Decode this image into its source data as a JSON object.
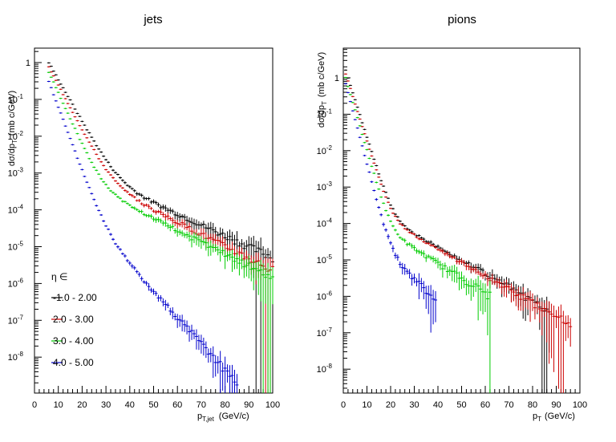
{
  "chart_data": [
    {
      "type": "scatter",
      "title": "jets",
      "xlabel": "p",
      "xlabel_sub": "T,jet",
      "xlabel_unit": "(GeV/c)",
      "ylabel": "dσ/dp (mb c/GeV)",
      "ylabel_parts": {
        "pre": "dσ/dp",
        "sub": "T",
        "post": "(mb c/GeV)"
      },
      "xlim": [
        0,
        100
      ],
      "ylim": [
        2e-09,
        2
      ],
      "log_y": true,
      "grid": false,
      "x_ticks": [
        0,
        10,
        20,
        30,
        40,
        50,
        60,
        70,
        80,
        90,
        100
      ],
      "y_ticks": [
        {
          "value": 1,
          "label": "1"
        },
        {
          "value": 0.1,
          "label": "10",
          "exp": "-1"
        },
        {
          "value": 0.01,
          "label": "10",
          "exp": "-2"
        },
        {
          "value": 0.001,
          "label": "10",
          "exp": "-3"
        },
        {
          "value": 0.0001,
          "label": "10",
          "exp": "-4"
        },
        {
          "value": 1e-05,
          "label": "10",
          "exp": "-5"
        },
        {
          "value": 1e-06,
          "label": "10",
          "exp": "-6"
        },
        {
          "value": 1e-07,
          "label": "10",
          "exp": "-7"
        },
        {
          "value": 1e-08,
          "label": "10",
          "exp": "-8"
        }
      ],
      "legend_header": "η ∈",
      "legend_position": "bottom-left",
      "series": [
        {
          "name": "-1.0 - 2.00",
          "color": "#000000",
          "model": {
            "x_start": 6,
            "x_end": 100,
            "a": 1.0,
            "b": 0.35,
            "c": 0.055,
            "d": 0.003,
            "e": 0.068
          }
        },
        {
          "name": "2.0 - 3.00",
          "color": "#cc0000",
          "model": {
            "x_start": 6,
            "x_end": 100,
            "a": 0.75,
            "b": 0.37,
            "c": 0.06,
            "d": 0.0026,
            "e": 0.0745
          }
        },
        {
          "name": "3.0 - 4.00",
          "color": "#00cc00",
          "model": {
            "x_start": 6,
            "x_end": 100,
            "a": 0.55,
            "b": 0.42,
            "c": 0.075,
            "d": 0.0016,
            "e": 0.075
          }
        },
        {
          "name": "4.0 - 5.00",
          "color": "#0000cc",
          "model": {
            "x_start": 6,
            "x_end": 85,
            "a": 0.3,
            "b": 0.48,
            "c": 0.11,
            "d": 0.0008,
            "e": 0.163
          }
        }
      ]
    },
    {
      "type": "scatter",
      "title": "pions",
      "xlabel": "p",
      "xlabel_sub": "T",
      "xlabel_unit": "(GeV/c)",
      "ylabel": "dσ/dp (mb c/GeV)",
      "ylabel_parts": {
        "pre": "dσ/dp",
        "sub": "T",
        "post": "(mb c/GeV)"
      },
      "xlim": [
        0,
        100
      ],
      "ylim": [
        2e-09,
        8
      ],
      "log_y": true,
      "grid": false,
      "x_ticks": [
        0,
        10,
        20,
        30,
        40,
        50,
        60,
        70,
        80,
        90,
        100
      ],
      "y_ticks": [
        {
          "value": 1,
          "label": "1"
        },
        {
          "value": 0.1,
          "label": "10",
          "exp": "-1"
        },
        {
          "value": 0.01,
          "label": "10",
          "exp": "-2"
        },
        {
          "value": 0.001,
          "label": "10",
          "exp": "-3"
        },
        {
          "value": 0.0001,
          "label": "10",
          "exp": "-4"
        },
        {
          "value": 1e-05,
          "label": "10",
          "exp": "-5"
        },
        {
          "value": 1e-06,
          "label": "10",
          "exp": "-6"
        },
        {
          "value": 1e-07,
          "label": "10",
          "exp": "-7"
        },
        {
          "value": 1e-08,
          "label": "10",
          "exp": "-8"
        }
      ],
      "series": [
        {
          "name": "-1.0 - 2.00",
          "color": "#000000",
          "model": {
            "x_start": 1,
            "x_end": 87,
            "a": 1.6,
            "b": 0.55,
            "c": 0.14,
            "d": 0.0006,
            "e": 0.084
          }
        },
        {
          "name": "2.0 - 3.00",
          "color": "#cc0000",
          "model": {
            "x_start": 1,
            "x_end": 96,
            "a": 1.3,
            "b": 0.56,
            "c": 0.14,
            "d": 0.00055,
            "e": 0.085
          }
        },
        {
          "name": "3.0 - 4.00",
          "color": "#00cc00",
          "model": {
            "x_start": 1,
            "x_end": 62,
            "a": 1.0,
            "b": 0.6,
            "c": 0.15,
            "d": 0.0003,
            "e": 0.093
          }
        },
        {
          "name": "4.0 - 5.00",
          "color": "#0000cc",
          "model": {
            "x_start": 1,
            "x_end": 39,
            "a": 0.7,
            "b": 0.64,
            "c": 0.18,
            "d": 0.00015,
            "e": 0.135
          }
        }
      ]
    }
  ]
}
